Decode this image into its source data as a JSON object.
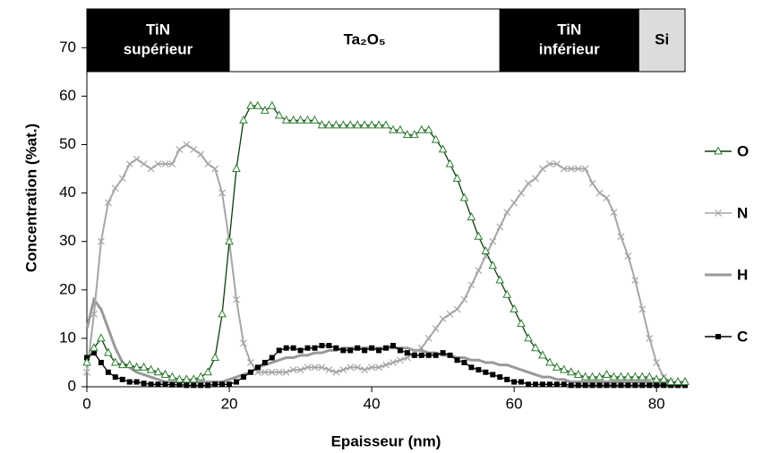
{
  "chart_data": {
    "type": "line",
    "x_label": "Epaisseur (nm)",
    "y_label": "Concentration (%at.)",
    "xlim": [
      0,
      84
    ],
    "ylim": [
      0,
      78
    ],
    "xticks": [
      0,
      20,
      40,
      60,
      80
    ],
    "yticks": [
      0,
      10,
      20,
      30,
      40,
      50,
      60,
      70
    ],
    "layers": [
      {
        "label": [
          "TiN",
          "supérieur"
        ],
        "from": 0,
        "to": 20,
        "fill": "#000000",
        "text_color": "#ffffff"
      },
      {
        "label": [
          "Ta₂O₅"
        ],
        "from": 20,
        "to": 58,
        "fill": "#ffffff",
        "text_color": "#000000"
      },
      {
        "label": [
          "TiN",
          "inférieur"
        ],
        "from": 58,
        "to": 77.5,
        "fill": "#000000",
        "text_color": "#ffffff"
      },
      {
        "label": [
          "Si"
        ],
        "from": 77.5,
        "to": 84,
        "fill": "#dcdcdc",
        "text_color": "#000000"
      }
    ],
    "x": [
      0,
      1,
      2,
      3,
      4,
      5,
      6,
      7,
      8,
      9,
      10,
      11,
      12,
      13,
      14,
      15,
      16,
      17,
      18,
      19,
      20,
      21,
      22,
      23,
      24,
      25,
      26,
      27,
      28,
      29,
      30,
      31,
      32,
      33,
      34,
      35,
      36,
      37,
      38,
      39,
      40,
      41,
      42,
      43,
      44,
      45,
      46,
      47,
      48,
      49,
      50,
      51,
      52,
      53,
      54,
      55,
      56,
      57,
      58,
      59,
      60,
      61,
      62,
      63,
      64,
      65,
      66,
      67,
      68,
      69,
      70,
      71,
      72,
      73,
      74,
      75,
      76,
      77,
      78,
      79,
      80,
      81,
      82,
      83,
      84
    ],
    "series": [
      {
        "name": "O",
        "color": "#0b3d0b",
        "marker": "triangle",
        "marker_color": "#2e7d32",
        "values": [
          5,
          8,
          10,
          7,
          5,
          4.5,
          4.5,
          4,
          4,
          3.5,
          3,
          2.5,
          2,
          1.5,
          1.5,
          1.5,
          2,
          3,
          6,
          15,
          30,
          45,
          55,
          58,
          58,
          57,
          58,
          56,
          55,
          55,
          55,
          55,
          55,
          54,
          54,
          54,
          54,
          54,
          54,
          54,
          54,
          54,
          54,
          53,
          53,
          52,
          52,
          53,
          53,
          51,
          49,
          46,
          43,
          39,
          35,
          31,
          28,
          25,
          22,
          19,
          16,
          13,
          10,
          8,
          6.5,
          5,
          4,
          3.5,
          3,
          2.5,
          2,
          2,
          2,
          2.5,
          2,
          2,
          2,
          2,
          2,
          2,
          1.5,
          1.5,
          1,
          1,
          1
        ]
      },
      {
        "name": "N",
        "color": "#a6a6a6",
        "marker": "x",
        "marker_color": "#a6a6a6",
        "values": [
          3,
          15,
          30,
          38,
          41,
          43,
          46,
          47,
          46,
          45,
          46,
          46,
          46,
          49,
          50,
          49,
          48,
          46,
          45,
          40,
          30,
          18,
          9,
          5,
          3,
          3,
          3,
          3,
          3,
          3.5,
          3.5,
          4,
          4,
          4,
          3.5,
          3,
          3.5,
          4,
          4,
          3.5,
          4,
          4,
          4.5,
          5,
          5.5,
          6,
          7,
          8,
          10,
          12,
          14,
          15,
          16,
          18,
          21,
          24,
          27,
          30,
          33,
          36,
          38,
          40,
          42,
          43,
          45,
          46,
          46,
          45,
          45,
          45,
          45,
          42,
          40,
          39,
          36,
          31,
          27,
          22,
          16,
          10,
          5,
          2,
          1,
          0.5,
          0.5
        ]
      },
      {
        "name": "H",
        "color": "#999999",
        "marker": "none",
        "marker_color": "#999999",
        "values": [
          12,
          18,
          16,
          12,
          8,
          5,
          4,
          3,
          2.5,
          2,
          1.5,
          1,
          1,
          1,
          1,
          1,
          1,
          1,
          1,
          1,
          1.5,
          2,
          2.5,
          3,
          4,
          4.5,
          5,
          5.5,
          6,
          6,
          6.5,
          6.5,
          7,
          7,
          7.5,
          7.5,
          8,
          8,
          8,
          8,
          8,
          8,
          8,
          8,
          8,
          8,
          7.5,
          7.5,
          7,
          7,
          6.5,
          6.5,
          6,
          6,
          5.5,
          5.5,
          5,
          5,
          4.5,
          4.5,
          4,
          3.5,
          3,
          2.5,
          2,
          2,
          1.5,
          1.5,
          1,
          1,
          1,
          1,
          1,
          1,
          1,
          1,
          1,
          1,
          1,
          1,
          0.5,
          0.5,
          0.5,
          0.5,
          0.5
        ]
      },
      {
        "name": "C",
        "color": "#000000",
        "marker": "square",
        "marker_color": "#000000",
        "values": [
          6,
          7,
          5,
          3,
          2,
          1.5,
          1,
          1,
          0.7,
          0.5,
          0.5,
          0.5,
          0.4,
          0.4,
          0.3,
          0.3,
          0.3,
          0.3,
          0.5,
          0.5,
          0.5,
          1,
          2,
          3,
          4,
          5,
          6,
          7.5,
          8,
          8,
          7.5,
          8,
          8,
          8.5,
          8.5,
          8,
          7.5,
          7.5,
          8,
          7.5,
          8,
          7.5,
          8,
          8.5,
          7.5,
          7,
          6.5,
          6.5,
          6.5,
          6.5,
          7,
          6.5,
          5.5,
          5,
          4,
          3.5,
          3,
          2.5,
          2,
          1.5,
          1,
          1,
          0.5,
          0.5,
          0.5,
          0.5,
          0.5,
          0.5,
          0.3,
          0.3,
          0.3,
          0.3,
          0.3,
          0.3,
          0.3,
          0.3,
          0.3,
          0.3,
          0.3,
          0.3,
          0.3,
          0.3,
          0.3,
          0.3,
          0.3
        ]
      }
    ]
  }
}
